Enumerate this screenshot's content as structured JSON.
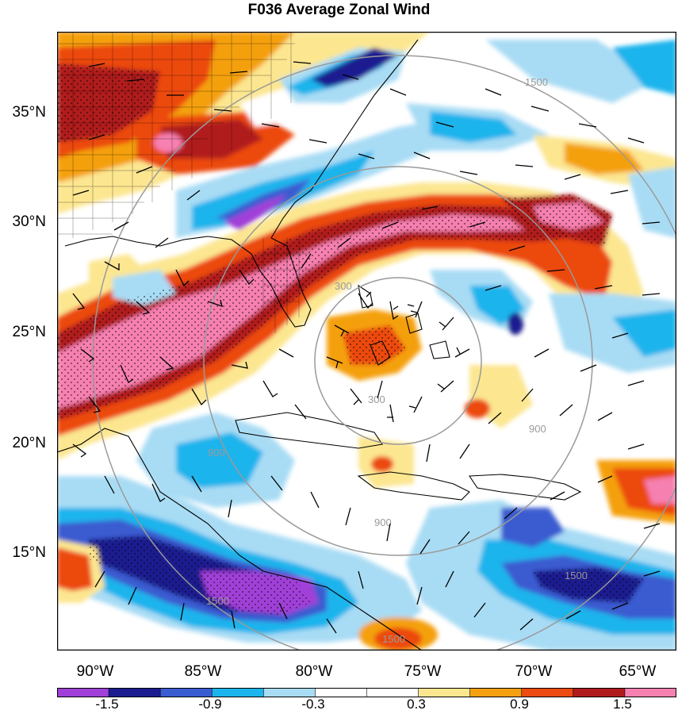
{
  "title": "F036 Average Zonal Wind",
  "lat_labels": [
    "35°N",
    "30°N",
    "25°N",
    "20°N",
    "15°N"
  ],
  "lon_labels": [
    "90°W",
    "85°W",
    "80°W",
    "75°W",
    "70°W",
    "65°W"
  ],
  "range_rings": [
    "300",
    "300",
    "900",
    "900",
    "900",
    "1500",
    "1500",
    "1500",
    "1500"
  ],
  "colorbar": {
    "labels": [
      "-1.5",
      "-0.9",
      "-0.3",
      "0.3",
      "0.9",
      "1.5"
    ],
    "colors": [
      "#a040d8",
      "#1c1c90",
      "#3a5cd0",
      "#1cb4ec",
      "#a8dcf4",
      "#ffffff",
      "#ffffff",
      "#fce690",
      "#f4a010",
      "#ec4a10",
      "#b01c1c",
      "#f680b0"
    ]
  }
}
